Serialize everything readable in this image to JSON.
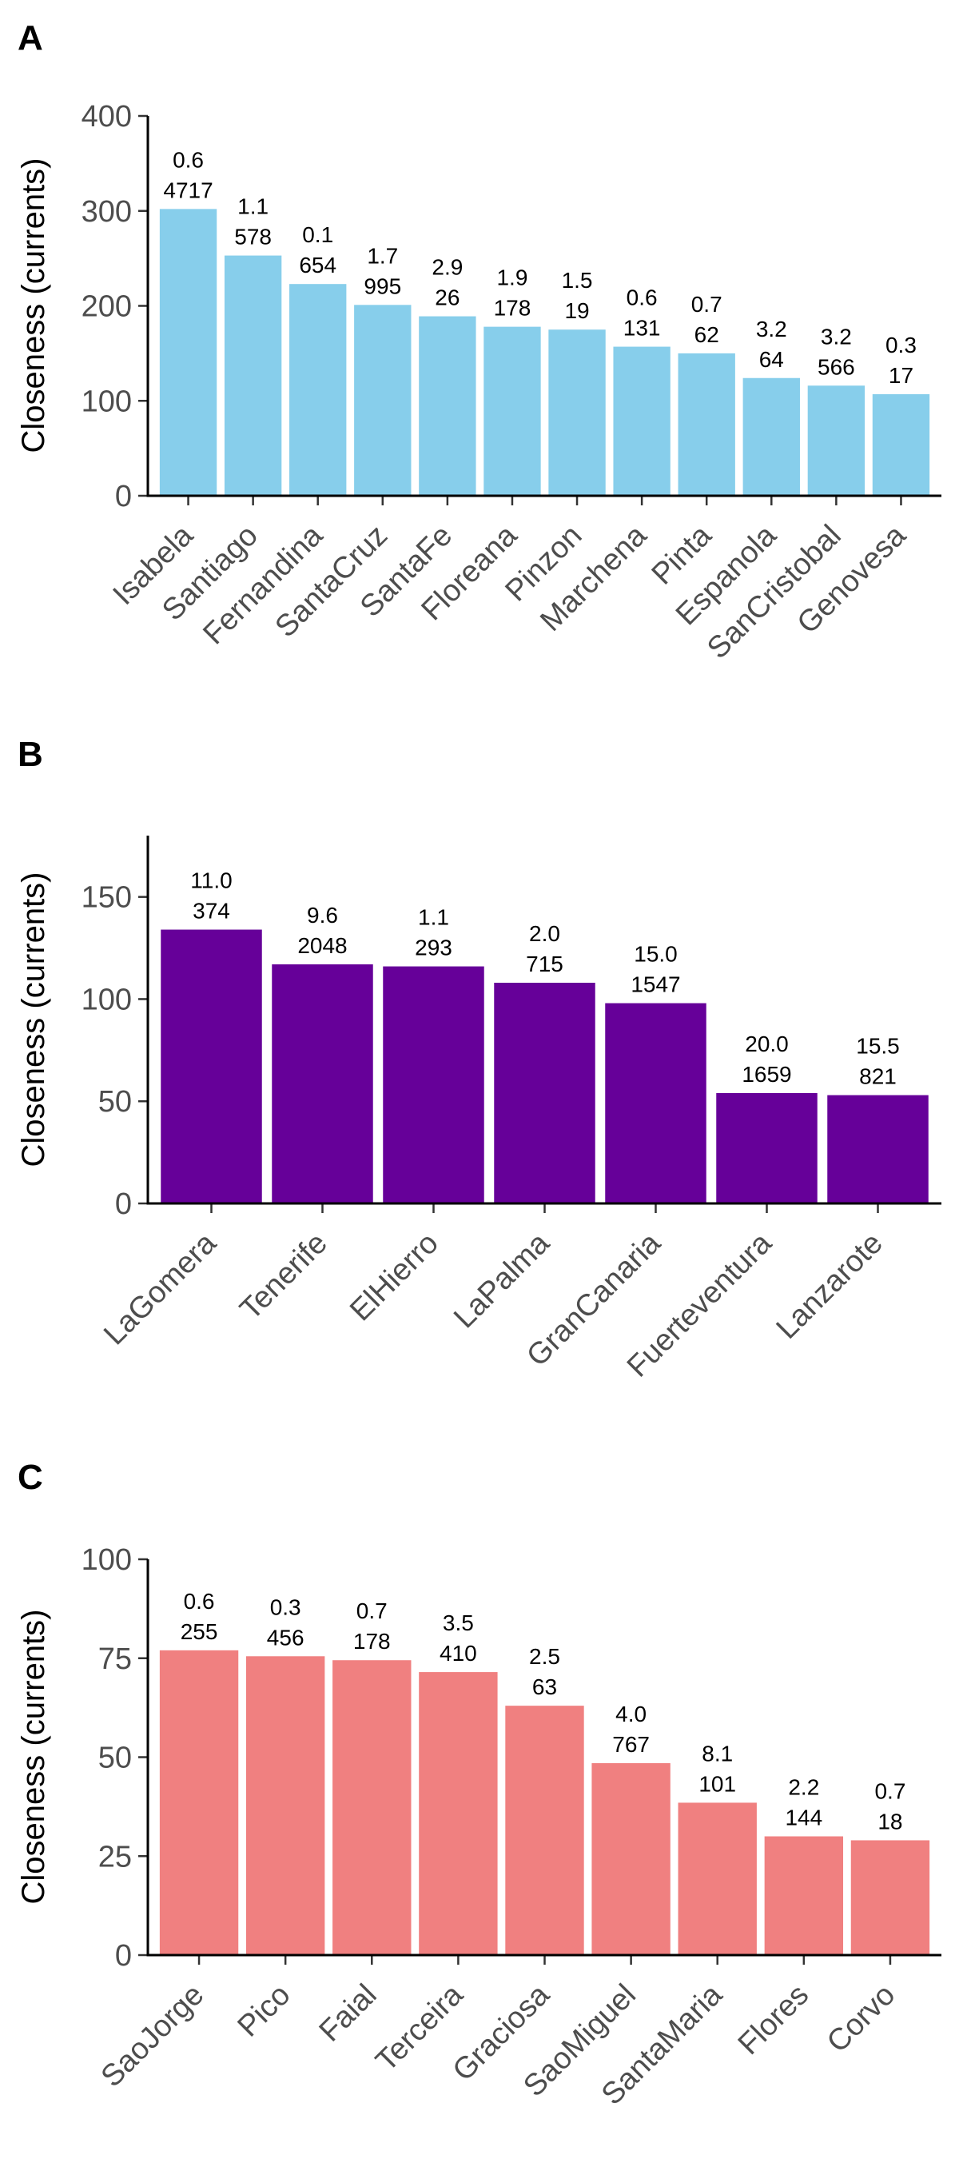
{
  "chart_data": [
    {
      "panel": "A",
      "type": "bar",
      "ylabel": "Closeness (currents)",
      "ylim": [
        0,
        400
      ],
      "yticks": [
        0,
        100,
        200,
        300,
        400
      ],
      "color": "#87CEEB",
      "grid": false,
      "categories": [
        "Isabela",
        "Santiago",
        "Fernandina",
        "SantaCruz",
        "SantaFe",
        "Floreana",
        "Pinzon",
        "Marchena",
        "Pinta",
        "Espanola",
        "SanCristobal",
        "Genovesa"
      ],
      "values": [
        302,
        253,
        223,
        201,
        189,
        178,
        175,
        157,
        150,
        124,
        116,
        107
      ],
      "labels_top": [
        "0.6",
        "1.1",
        "0.1",
        "1.7",
        "2.9",
        "1.9",
        "1.5",
        "0.6",
        "0.7",
        "3.2",
        "3.2",
        "0.3"
      ],
      "labels_bottom": [
        "4717",
        "578",
        "654",
        "995",
        "26",
        "178",
        "19",
        "131",
        "62",
        "64",
        "566",
        "17"
      ]
    },
    {
      "panel": "B",
      "type": "bar",
      "ylabel": "Closeness (currents)",
      "ylim": [
        0,
        180
      ],
      "yticks": [
        0,
        50,
        100,
        150
      ],
      "color": "#660099",
      "grid": false,
      "categories": [
        "LaGomera",
        "Tenerife",
        "ElHierro",
        "LaPalma",
        "GranCanaria",
        "Fuerteventura",
        "Lanzarote"
      ],
      "values": [
        134,
        117,
        116,
        108,
        98,
        54,
        53
      ],
      "labels_top": [
        "11.0",
        "9.6",
        "1.1",
        "2.0",
        "15.0",
        "20.0",
        "15.5"
      ],
      "labels_bottom": [
        "374",
        "2048",
        "293",
        "715",
        "1547",
        "1659",
        "821"
      ]
    },
    {
      "panel": "C",
      "type": "bar",
      "ylabel": "Closeness (currents)",
      "ylim": [
        0,
        100
      ],
      "yticks": [
        0,
        25,
        50,
        75,
        100
      ],
      "color": "#F08080",
      "grid": false,
      "categories": [
        "SaoJorge",
        "Pico",
        "Faial",
        "Terceira",
        "Graciosa",
        "SaoMiguel",
        "SantaMaria",
        "Flores",
        "Corvo"
      ],
      "values": [
        77,
        75.5,
        74.5,
        71.5,
        63,
        48.5,
        38.5,
        30,
        29
      ],
      "labels_top": [
        "0.6",
        "0.3",
        "0.7",
        "3.5",
        "2.5",
        "4.0",
        "8.1",
        "2.2",
        "0.7"
      ],
      "labels_bottom": [
        "255",
        "456",
        "178",
        "410",
        "63",
        "767",
        "101",
        "144",
        "18"
      ]
    }
  ]
}
